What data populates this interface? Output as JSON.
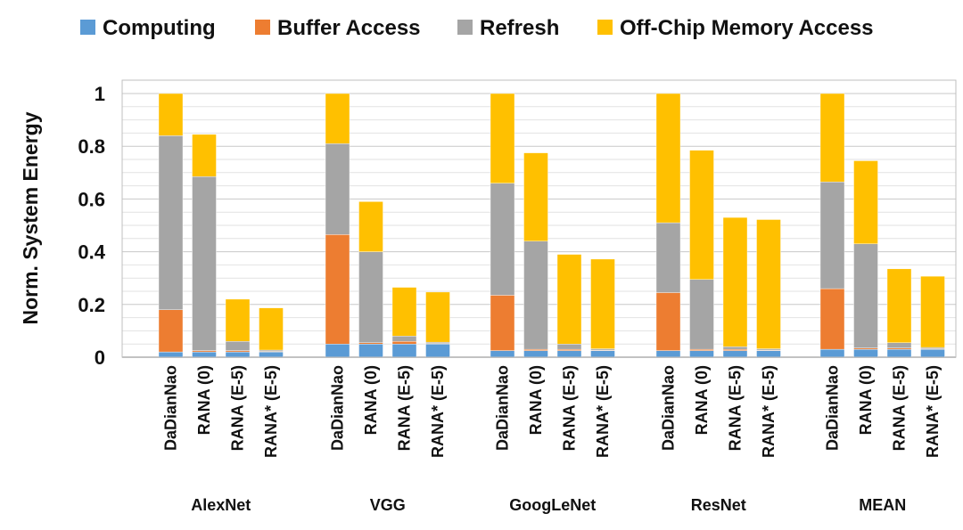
{
  "chart_data": {
    "type": "bar",
    "stacked": true,
    "title": "",
    "xlabel": "",
    "ylabel": "Norm. System Energy",
    "ylim": [
      0,
      1
    ],
    "yticks": [
      "0",
      "0.2",
      "0.4",
      "0.6",
      "0.8",
      "1"
    ],
    "legend_position": "top",
    "grid": true,
    "groups": [
      "AlexNet",
      "VGG",
      "GoogLeNet",
      "ResNet",
      "MEAN"
    ],
    "categories": [
      "DaDianNao",
      "RANA (0)",
      "RANA (E-5)",
      "RANA* (E-5)"
    ],
    "series": [
      {
        "name": "Computing",
        "color": "#5B9BD5",
        "values": [
          [
            0.02,
            0.02,
            0.02,
            0.02
          ],
          [
            0.05,
            0.05,
            0.05,
            0.05
          ],
          [
            0.025,
            0.025,
            0.025,
            0.025
          ],
          [
            0.025,
            0.025,
            0.025,
            0.025
          ],
          [
            0.03,
            0.03,
            0.03,
            0.03
          ]
        ]
      },
      {
        "name": "Buffer Access",
        "color": "#ED7D31",
        "values": [
          [
            0.16,
            0.005,
            0.005,
            0.002
          ],
          [
            0.415,
            0.005,
            0.01,
            0.002
          ],
          [
            0.21,
            0.005,
            0.005,
            0.002
          ],
          [
            0.22,
            0.005,
            0.005,
            0.002
          ],
          [
            0.23,
            0.005,
            0.005,
            0.002
          ]
        ]
      },
      {
        "name": "Refresh",
        "color": "#A5A5A5",
        "values": [
          [
            0.66,
            0.66,
            0.035,
            0.005
          ],
          [
            0.345,
            0.345,
            0.02,
            0.005
          ],
          [
            0.425,
            0.41,
            0.02,
            0.005
          ],
          [
            0.265,
            0.265,
            0.01,
            0.005
          ],
          [
            0.405,
            0.395,
            0.02,
            0.005
          ]
        ]
      },
      {
        "name": "Off-Chip Memory Access",
        "color": "#FFC000",
        "values": [
          [
            0.16,
            0.16,
            0.16,
            0.16
          ],
          [
            0.19,
            0.19,
            0.185,
            0.19
          ],
          [
            0.34,
            0.335,
            0.34,
            0.34
          ],
          [
            0.49,
            0.49,
            0.49,
            0.49
          ],
          [
            0.335,
            0.315,
            0.28,
            0.27
          ]
        ]
      }
    ]
  }
}
